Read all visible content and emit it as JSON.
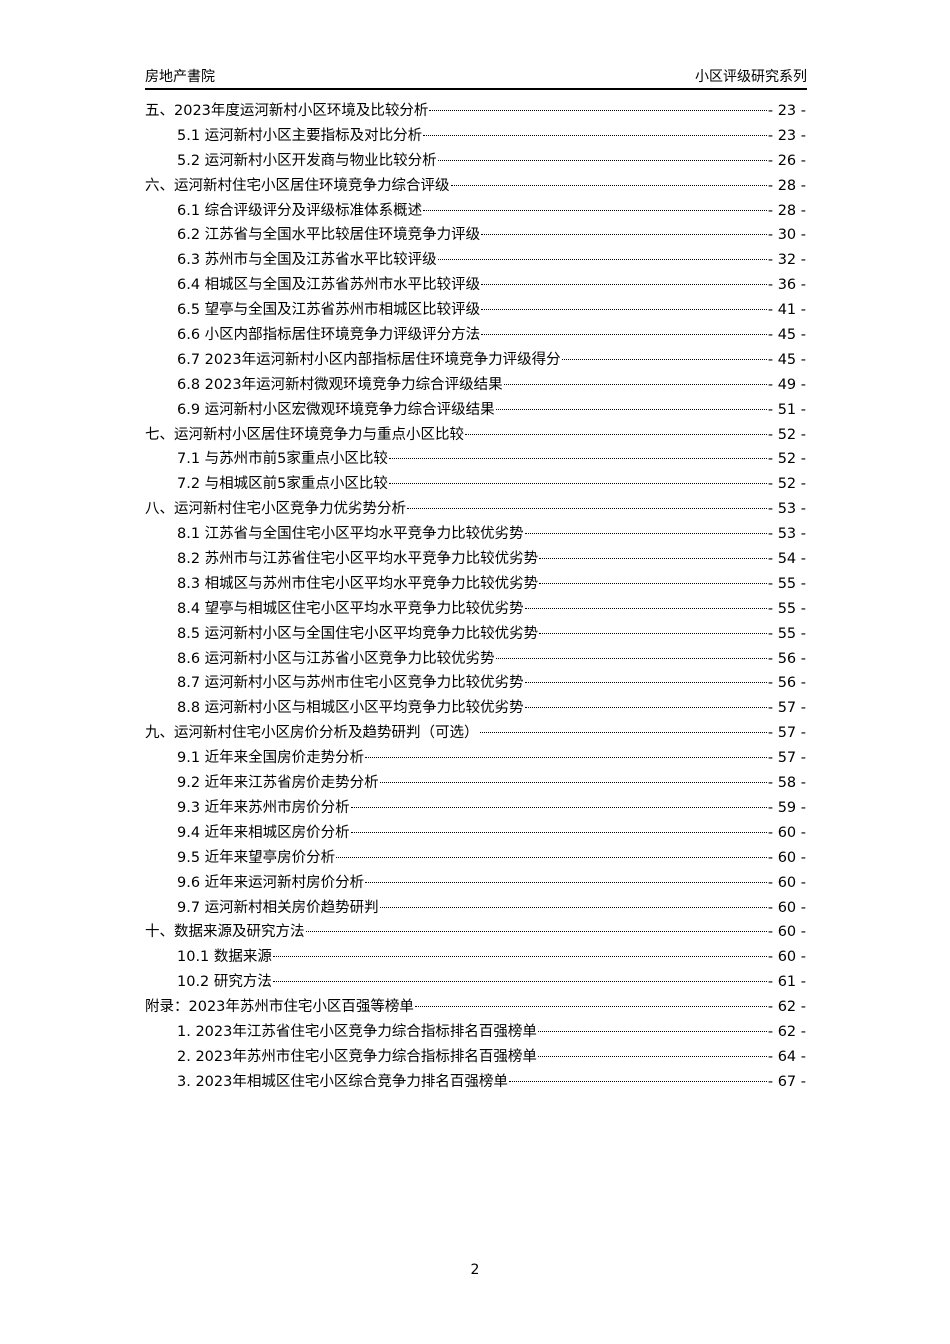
{
  "header": {
    "left": "房地产書院",
    "right": "小区评级研究系列"
  },
  "toc": [
    {
      "level": 1,
      "title": "五、2023年度运河新村小区环境及比较分析",
      "page": "- 23 -"
    },
    {
      "level": 2,
      "title": "5.1 运河新村小区主要指标及对比分析",
      "page": "- 23 -"
    },
    {
      "level": 2,
      "title": "5.2 运河新村小区开发商与物业比较分析",
      "page": "- 26 -"
    },
    {
      "level": 1,
      "title": "六、运河新村住宅小区居住环境竞争力综合评级",
      "page": "- 28 -"
    },
    {
      "level": 2,
      "title": "6.1 综合评级评分及评级标准体系概述",
      "page": "- 28 -"
    },
    {
      "level": 2,
      "title": "6.2 江苏省与全国水平比较居住环境竞争力评级",
      "page": "- 30 -"
    },
    {
      "level": 2,
      "title": "6.3 苏州市与全国及江苏省水平比较评级",
      "page": "- 32 -"
    },
    {
      "level": 2,
      "title": "6.4 相城区与全国及江苏省苏州市水平比较评级",
      "page": "- 36 -"
    },
    {
      "level": 2,
      "title": "6.5 望亭与全国及江苏省苏州市相城区比较评级",
      "page": "- 41 -"
    },
    {
      "level": 2,
      "title": "6.6 小区内部指标居住环境竞争力评级评分方法",
      "page": "- 45 -"
    },
    {
      "level": 2,
      "title": "6.7 2023年运河新村小区内部指标居住环境竞争力评级得分",
      "page": "- 45 -"
    },
    {
      "level": 2,
      "title": "6.8 2023年运河新村微观环境竞争力综合评级结果",
      "page": "- 49 -"
    },
    {
      "level": 2,
      "title": "6.9 运河新村小区宏微观环境竞争力综合评级结果",
      "page": "- 51 -"
    },
    {
      "level": 1,
      "title": "七、运河新村小区居住环境竞争力与重点小区比较",
      "page": "- 52 -"
    },
    {
      "level": 2,
      "title": "7.1 与苏州市前5家重点小区比较",
      "page": "- 52 -"
    },
    {
      "level": 2,
      "title": "7.2 与相城区前5家重点小区比较",
      "page": "- 52 -"
    },
    {
      "level": 1,
      "title": "八、运河新村住宅小区竞争力优劣势分析",
      "page": "- 53 -"
    },
    {
      "level": 2,
      "title": "8.1 江苏省与全国住宅小区平均水平竞争力比较优劣势",
      "page": "- 53 -"
    },
    {
      "level": 2,
      "title": "8.2 苏州市与江苏省住宅小区平均水平竞争力比较优劣势",
      "page": "- 54 -"
    },
    {
      "level": 2,
      "title": "8.3 相城区与苏州市住宅小区平均水平竞争力比较优劣势",
      "page": "- 55 -"
    },
    {
      "level": 2,
      "title": "8.4 望亭与相城区住宅小区平均水平竞争力比较优劣势",
      "page": "- 55 -"
    },
    {
      "level": 2,
      "title": "8.5 运河新村小区与全国住宅小区平均竞争力比较优劣势",
      "page": "- 55 -"
    },
    {
      "level": 2,
      "title": "8.6 运河新村小区与江苏省小区竞争力比较优劣势",
      "page": "- 56 -"
    },
    {
      "level": 2,
      "title": "8.7 运河新村小区与苏州市住宅小区竞争力比较优劣势",
      "page": "- 56 -"
    },
    {
      "level": 2,
      "title": "8.8 运河新村小区与相城区小区平均竞争力比较优劣势",
      "page": "- 57 -"
    },
    {
      "level": 1,
      "title": "九、运河新村住宅小区房价分析及趋势研判（可选）",
      "page": "- 57 -"
    },
    {
      "level": 2,
      "title": "9.1 近年来全国房价走势分析",
      "page": "- 57 -"
    },
    {
      "level": 2,
      "title": "9.2 近年来江苏省房价走势分析",
      "page": "- 58 -"
    },
    {
      "level": 2,
      "title": "9.3 近年来苏州市房价分析",
      "page": "- 59 -"
    },
    {
      "level": 2,
      "title": "9.4 近年来相城区房价分析",
      "page": "- 60 -"
    },
    {
      "level": 2,
      "title": "9.5 近年来望亭房价分析",
      "page": "- 60 -"
    },
    {
      "level": 2,
      "title": "9.6 近年来运河新村房价分析",
      "page": "- 60 -"
    },
    {
      "level": 2,
      "title": "9.7 运河新村相关房价趋势研判",
      "page": "- 60 -"
    },
    {
      "level": 1,
      "title": "十、数据来源及研究方法",
      "page": "- 60 -"
    },
    {
      "level": 2,
      "title": "10.1 数据来源",
      "page": "- 60 -"
    },
    {
      "level": 2,
      "title": "10.2 研究方法",
      "page": "- 61 -"
    },
    {
      "level": 1,
      "title": "附录：2023年苏州市住宅小区百强等榜单",
      "page": "- 62 -"
    },
    {
      "level": 2,
      "title": "1. 2023年江苏省住宅小区竞争力综合指标排名百强榜单",
      "page": "- 62 -"
    },
    {
      "level": 2,
      "title": "2. 2023年苏州市住宅小区竞争力综合指标排名百强榜单",
      "page": "- 64 -"
    },
    {
      "level": 2,
      "title": "3. 2023年相城区住宅小区综合竞争力排名百强榜单",
      "page": "- 67 -"
    }
  ],
  "footer": {
    "page_number": "2"
  }
}
